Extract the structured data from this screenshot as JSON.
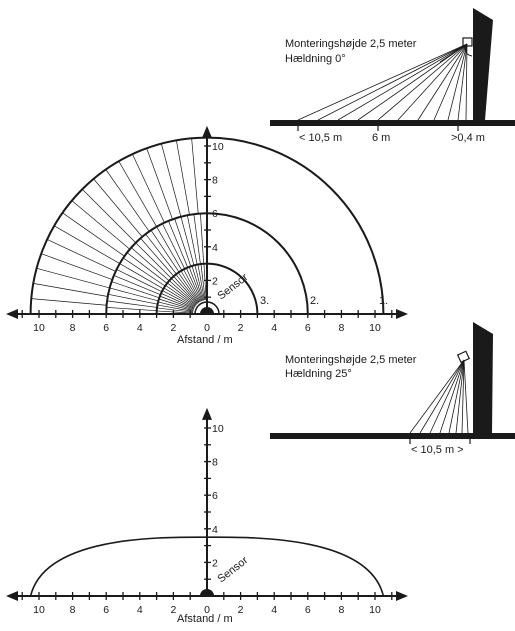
{
  "top_side_view": {
    "mount_height_label": "Monteringshøjde 2,5 meter",
    "tilt_label": "Hældning 0°",
    "distance_labels": [
      "< 10,5 m",
      "6 m",
      ">0,4 m"
    ]
  },
  "top_range_diagram": {
    "y_ticks": [
      "2",
      "4",
      "6",
      "8",
      "10"
    ],
    "x_ticks": [
      "10",
      "8",
      "6",
      "4",
      "2",
      "0",
      "2",
      "4",
      "6",
      "8",
      "10"
    ],
    "zone_labels": [
      "1.",
      "2.",
      "3."
    ],
    "sensor_label": "Sensor",
    "x_axis_label": "Afstand / m",
    "zones_m": [
      10.5,
      6,
      3
    ]
  },
  "bottom_side_view": {
    "mount_height_label": "Monteringshøjde 2,5 meter",
    "tilt_label": "Hældning 25°",
    "distance_label": "< 10,5 m >"
  },
  "bottom_range_diagram": {
    "y_ticks": [
      "2",
      "4",
      "6",
      "8",
      "10"
    ],
    "x_ticks": [
      "10",
      "8",
      "6",
      "4",
      "2",
      "0",
      "2",
      "4",
      "6",
      "8",
      "10"
    ],
    "sensor_label": "Sensor",
    "x_axis_label": "Afstand / m",
    "zone_reach_m": 10.5,
    "zone_depth_m": 3.5
  }
}
